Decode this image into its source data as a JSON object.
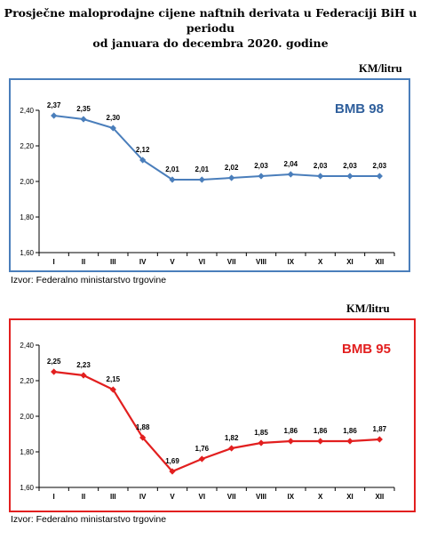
{
  "title_line1": "Prosječne maloprodajne cijene naftnih derivata u Federaciji BiH u periodu",
  "title_line2": "od januara do decembra 2020. godine",
  "source": "Izvor: Federalno ministarstvo trgovine",
  "colors": {
    "chart1_accent": "#2f5f9c",
    "chart1_line": "#4a7ebb",
    "chart2_accent": "#e21f1f"
  },
  "chart_data": [
    {
      "type": "line",
      "series_label": "BMB 98",
      "unit": "KM/litru",
      "categories": [
        "I",
        "II",
        "III",
        "IV",
        "V",
        "VI",
        "VII",
        "VIII",
        "IX",
        "X",
        "XI",
        "XII"
      ],
      "values": [
        2.37,
        2.35,
        2.3,
        2.12,
        2.01,
        2.01,
        2.02,
        2.03,
        2.04,
        2.03,
        2.03,
        2.03
      ],
      "value_labels": [
        "2,37",
        "2,35",
        "2,30",
        "2,12",
        "2,01",
        "2,01",
        "2,02",
        "2,03",
        "2,04",
        "2,03",
        "2,03",
        "2,03"
      ],
      "y_ticks": [
        "1,60",
        "1,80",
        "2,00",
        "2,20",
        "2,40"
      ],
      "ylim": [
        1.6,
        2.4
      ],
      "grid": false
    },
    {
      "type": "line",
      "series_label": "BMB 95",
      "unit": "KM/litru",
      "categories": [
        "I",
        "II",
        "III",
        "IV",
        "V",
        "VI",
        "VII",
        "VIII",
        "IX",
        "X",
        "XI",
        "XII"
      ],
      "values": [
        2.25,
        2.23,
        2.15,
        1.88,
        1.69,
        1.76,
        1.82,
        1.85,
        1.86,
        1.86,
        1.86,
        1.87
      ],
      "value_labels": [
        "2,25",
        "2,23",
        "2,15",
        "1,88",
        "1,69",
        "1,76",
        "1,82",
        "1,85",
        "1,86",
        "1,86",
        "1,86",
        "1,87"
      ],
      "y_ticks": [
        "1,60",
        "1,80",
        "2,00",
        "2,20",
        "2,40"
      ],
      "ylim": [
        1.6,
        2.4
      ],
      "grid": false
    }
  ]
}
